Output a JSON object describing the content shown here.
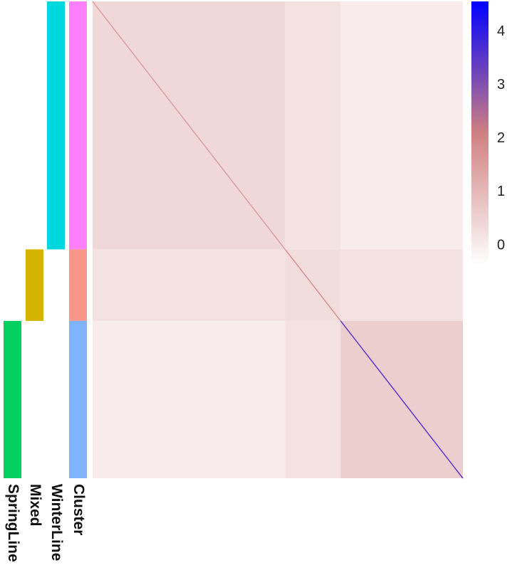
{
  "chart_data": {
    "type": "heatmap",
    "group_sizes": [
      52,
      15,
      33
    ],
    "blocks": [
      [
        0.4,
        0.2,
        0.0
      ],
      [
        0.2,
        0.3,
        0.2
      ],
      [
        0.0,
        0.2,
        0.6
      ]
    ],
    "diagonal": [
      1.5,
      1.8,
      3.5
    ],
    "clim": [
      -0.36,
      4.57
    ],
    "colors": [
      "#ffffff",
      "#d08080",
      "#0000ff"
    ],
    "cticks": [
      0,
      1,
      2,
      3,
      4
    ],
    "tracks": [
      {
        "name": "Cluster",
        "colors": [
          "#ff80ff",
          "#f8968a",
          "#80b4ff"
        ]
      },
      {
        "name": "WinterLine",
        "colors": [
          "#00d8e0",
          null,
          null
        ]
      },
      {
        "name": "Mixed",
        "colors": [
          null,
          "#d4b400",
          null
        ]
      },
      {
        "name": "SpringLine",
        "colors": [
          null,
          null,
          "#00d060"
        ]
      }
    ]
  }
}
